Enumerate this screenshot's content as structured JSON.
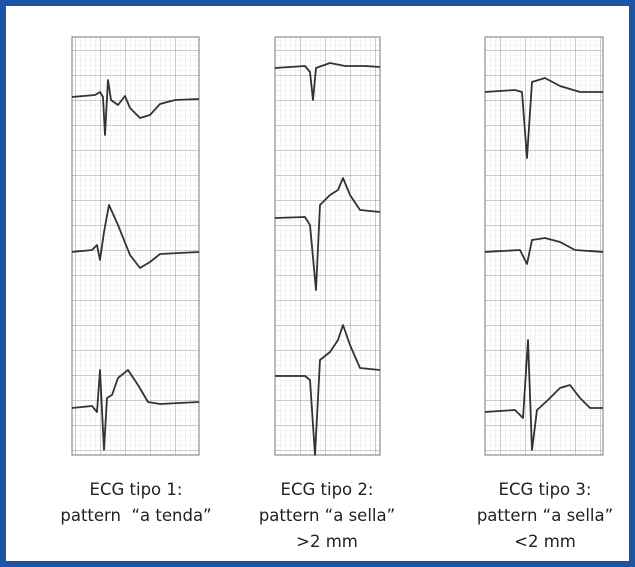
{
  "panels": [
    {
      "caption": [
        "ECG tipo 1:",
        "pattern  “a tenda”"
      ]
    },
    {
      "caption": [
        "ECG tipo 2:",
        "pattern “a sella”",
        ">2 mm"
      ]
    },
    {
      "caption": [
        "ECG tipo 3:",
        "pattern “a sella”",
        "<2 mm"
      ]
    }
  ]
}
